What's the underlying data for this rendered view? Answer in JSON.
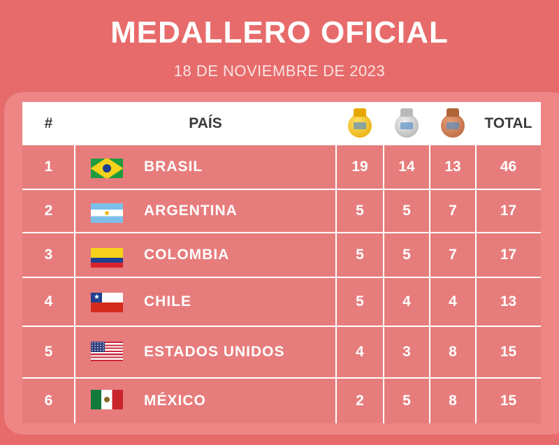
{
  "header": {
    "title": "MEDALLERO OFICIAL",
    "date": "18 DE NOVIEMBRE DE 2023"
  },
  "table": {
    "columns": {
      "rank": "#",
      "country": "PAÍS",
      "gold_icon": "gold-medal-icon",
      "silver_icon": "silver-medal-icon",
      "bronze_icon": "bronze-medal-icon",
      "total": "TOTAL"
    },
    "rows": [
      {
        "rank": "1",
        "country": "BRASIL",
        "flag": "flag-brazil-icon",
        "gold": "19",
        "silver": "14",
        "bronze": "13",
        "total": "46"
      },
      {
        "rank": "2",
        "country": "ARGENTINA",
        "flag": "flag-argentina-icon",
        "gold": "5",
        "silver": "5",
        "bronze": "7",
        "total": "17"
      },
      {
        "rank": "3",
        "country": "COLOMBIA",
        "flag": "flag-colombia-icon",
        "gold": "5",
        "silver": "5",
        "bronze": "7",
        "total": "17"
      },
      {
        "rank": "4",
        "country": "CHILE",
        "flag": "flag-chile-icon",
        "gold": "5",
        "silver": "4",
        "bronze": "4",
        "total": "13"
      },
      {
        "rank": "5",
        "country": "ESTADOS UNIDOS",
        "flag": "flag-usa-icon",
        "gold": "4",
        "silver": "3",
        "bronze": "8",
        "total": "15"
      },
      {
        "rank": "6",
        "country": "MÉXICO",
        "flag": "flag-mexico-icon",
        "gold": "2",
        "silver": "5",
        "bronze": "8",
        "total": "15"
      }
    ]
  },
  "colors": {
    "background": "#e76b6b",
    "panel": "#ee8686",
    "rows": "#e77c7c",
    "header_bg": "#ffffff",
    "header_text": "#3a3a3a",
    "text": "#ffffff"
  }
}
